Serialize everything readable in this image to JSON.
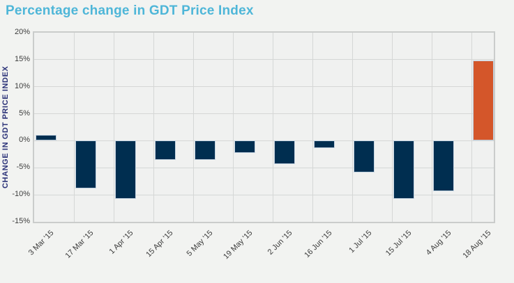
{
  "page": {
    "background": "#f2f3f1"
  },
  "chart_data": {
    "type": "bar",
    "title": "Percentage change in GDT Price Index",
    "ylabel": "CHANGE IN GDT PRICE INDEX",
    "xlabel": "",
    "categories": [
      "3 Mar '15",
      "17 Mar '15",
      "1 Apr '15",
      "15 Apr '15",
      "5 May '15",
      "19 May '15",
      "2 Jun '15",
      "16 Jun '15",
      "1 Jul '15",
      "15 Jul '15",
      "4 Aug '15",
      "18 Aug '15"
    ],
    "values": [
      1.1,
      -8.8,
      -10.8,
      -3.6,
      -3.5,
      -2.2,
      -4.3,
      -1.3,
      -5.9,
      -10.7,
      -9.3,
      14.8
    ],
    "ylim": [
      -15,
      20
    ],
    "ytick_step": 5,
    "y_tick_labels": [
      "20%",
      "15%",
      "10%",
      "5%",
      "0%",
      "-5%",
      "-10%",
      "-15%"
    ],
    "grid": true,
    "legend": false,
    "highlight_index": 11,
    "colors": {
      "bar": "#002e50",
      "highlight_bar": "#d4562a",
      "bar_stroke": "#c3d2e0",
      "title": "#4eb6d8",
      "axis_title": "#2b3278",
      "tick_text": "#3c3c3c",
      "grid": "#d5d7d6",
      "plot_border": "#cacccb",
      "plot_bg": "#f0f1f0"
    }
  }
}
